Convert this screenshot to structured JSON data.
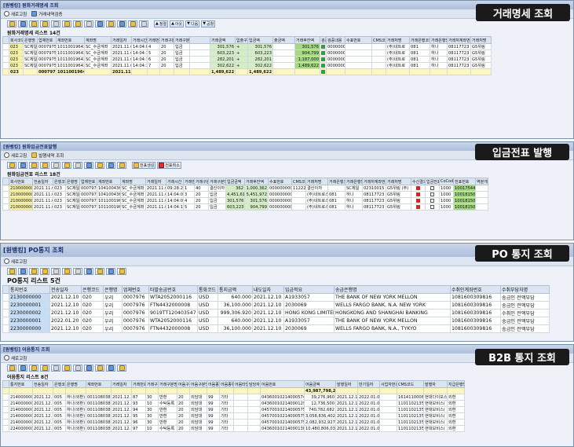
{
  "panel1": {
    "title": "[원뱅킹] 원화거래명세 조회",
    "tag": "거래명세 조회",
    "app_buttons": [
      "새로고침",
      "거래내역검증"
    ],
    "toolbar_buttons": [
      "정렬",
      "아웃",
      "다음",
      "공항"
    ],
    "list_title": "원화거래명세 리스트 14건",
    "headers": [
      "회사코드",
      "은행명",
      "업체번호",
      "계좌번호",
      "계좌명",
      "거래일자",
      "거래시간",
      "거래번호",
      "거래구분",
      "거래구분명",
      "",
      "거래금액",
      "입출구분",
      "입금액",
      "출금액",
      "거래후잔액",
      "검증",
      "검증내용",
      "수표번호",
      "CMS코드",
      "거래처명",
      "거래은행코드",
      "거래은행명",
      "거래처계좌번호",
      "거래처명"
    ],
    "rows": [
      [
        "023",
        "SC제일",
        "0007975",
        "10110019643",
        "SC_수금계좌",
        "2021.11.01",
        "14:04:06",
        "4",
        "20",
        "입금",
        "",
        "301,576",
        "+",
        "301,576",
        "",
        "301,576",
        "초기전액",
        "0000000000",
        "",
        "",
        "(주)네트로",
        "081",
        "하나",
        "08117723",
        "G5위링"
      ],
      [
        "023",
        "SC제일",
        "0007975",
        "10110019643",
        "SC_수금계좌",
        "2021.11.01",
        "14:04:10",
        "5",
        "20",
        "입금",
        "",
        "603,223",
        "+",
        "603,223",
        "",
        "904,799",
        "전액일치",
        "0000000000",
        "",
        "",
        "(주)네트로",
        "081",
        "하나",
        "08117723",
        "G5위링"
      ],
      [
        "023",
        "SC제일",
        "0007975",
        "10110019643",
        "SC_수금계좌",
        "2021.11.01",
        "14:04:13",
        "6",
        "20",
        "입금",
        "",
        "282,201",
        "+",
        "282,201",
        "",
        "1,187,000",
        "전액일치",
        "0000000000",
        "",
        "",
        "(주)네트로",
        "081",
        "하나",
        "08117723",
        "G5위링"
      ],
      [
        "023",
        "SC제일",
        "0007975",
        "10110019643",
        "SC_수금계좌",
        "2021.11.01",
        "14:04:16",
        "7",
        "20",
        "입금",
        "",
        "302,622",
        "+",
        "302,622",
        "",
        "1,489,622",
        "전액일치",
        "0000000000",
        "",
        "",
        "(주)네트로",
        "081",
        "하나",
        "08117723",
        "G5위링"
      ]
    ],
    "sum": [
      "023",
      "",
      "0007975",
      "10110019643",
      "",
      "2021.11.01",
      "",
      "",
      "",
      "",
      "",
      "1,489,622",
      "",
      "1,489,622",
      "",
      "",
      "",
      "",
      "",
      "",
      "",
      "",
      "",
      "",
      ""
    ]
  },
  "panel2": {
    "title": "[원뱅킹] 원화입금전표발행",
    "tag": "입금전표 발행",
    "app_buttons": [
      "새로고침",
      "발행내역 조회"
    ],
    "toolbar_buttons": [
      "전표생성",
      "전표취소"
    ],
    "list_title": "원화입금전표 리스트 18건",
    "headers": [
      "회사번호",
      "전송일자",
      "은행코드",
      "은행명",
      "업체번호",
      "계좌번호",
      "계좌명",
      "거래일자",
      "거래시간",
      "거래번호",
      "거래구분",
      "거래구분명",
      "입금금액",
      "거래후잔액",
      "수표번호",
      "CMS코드",
      "거래처명",
      "거래은행코드",
      "거래은행명",
      "거래처계좌번호",
      "거래처명",
      "수신결과",
      "입금전표",
      "CoCode",
      "전표번호",
      "역분개"
    ],
    "rows": [
      [
        "2100000002",
        "2021.11.01",
        "023",
        "SC제일",
        "0007975",
        "10410043660",
        "SC_수금계좌",
        "2021.11.01",
        "09:28:22",
        "1",
        "40",
        "결산이자",
        "362",
        "1,000,362",
        "0000000000",
        "11222",
        "결산이자",
        "",
        "SC제일",
        "02310015",
        "G5위링 (주)",
        "red",
        "",
        "1000",
        "100175449",
        ""
      ],
      [
        "2100000004",
        "2021.11.01",
        "023",
        "SC제일",
        "0007975",
        "10410043660",
        "SC_수금계좌",
        "2021.11.01",
        "14:04:00",
        "3",
        "20",
        "입금",
        "4,451,610",
        "5,451,972",
        "0000000000",
        "",
        "(주)네트로스",
        "081",
        "하나",
        "08117723",
        "G5위링",
        "red",
        "",
        "1000",
        "100181500",
        ""
      ],
      [
        "2100000005",
        "2021.11.01",
        "023",
        "SC제일",
        "0007975",
        "10110019643",
        "SC_수금계좌",
        "2021.11.01",
        "14:04:06",
        "4",
        "20",
        "입금",
        "301,576",
        "301,576",
        "0000000000",
        "",
        "(주)네트로스",
        "081",
        "하나",
        "08117723",
        "G5위링",
        "red",
        "",
        "1000",
        "100181505",
        ""
      ],
      [
        "2100000006",
        "2021.11.01",
        "023",
        "SC제일",
        "0007975",
        "10110019643",
        "SC_수금계좌",
        "2021.11.01",
        "14:04:10",
        "5",
        "20",
        "입금",
        "603,223",
        "904,799",
        "0000000000",
        "",
        "(주)네트로스",
        "081",
        "하나",
        "08117723",
        "G5위링",
        "red",
        "",
        "1000",
        "100181506",
        ""
      ]
    ]
  },
  "panel3": {
    "title": "[원뱅킹] PO통지 조회",
    "tag": "PO 통지 조회",
    "app_buttons": [
      "새로고침"
    ],
    "list_title": "PO통지 리스트 5건",
    "headers": [
      "통지번호",
      "전송일자",
      "은행코드",
      "은행명",
      "업체번호",
      "타발송금번호",
      "통화코드",
      "통지금액",
      "내도일자",
      "입금적요",
      "송금은행명",
      "수취인계좌번호",
      "수취부담자명"
    ],
    "rows": [
      [
        "2130000000",
        "2021.12.10",
        "020",
        "우리",
        "0007976",
        "WTA2052000116",
        "USD",
        "640.000",
        "2021.12.10",
        "A1933057",
        "THE BANK OF NEW YORK MELLON",
        "1081600309816",
        "송금인 전액부담"
      ],
      [
        "2230000001",
        "2021.12.10",
        "020",
        "우리",
        "0007976",
        "FTN4432000008",
        "USD",
        "36,100.000",
        "2021.12.10",
        "2030069",
        "WELLS FARGO BANK, N.A. NEW YORK",
        "1081600309816",
        "송금인 전액부담"
      ],
      [
        "2230000002",
        "2021.12.10",
        "020",
        "우리",
        "0007976",
        "9019TT120403547",
        "USD",
        "999,306.920",
        "2021.12.10",
        "HONG KONG LIMITED",
        "HONGKONG AND SHANGHAI BANKING",
        "1081600309816",
        "수취인 전액부담"
      ],
      [
        "2230000001",
        "2022.01.20",
        "020",
        "우리",
        "0007976",
        "WTA2052000116",
        "USD",
        "640.000",
        "2021.12.10",
        "A1933057",
        "THE BANK OF NEW YORK MELLON",
        "1081600309816",
        "송금인 전액부담"
      ],
      [
        "2230000000",
        "2021.12.10",
        "020",
        "우리",
        "0007976",
        "FTN4432000008",
        "USD",
        "36,100.000",
        "2021.12.10",
        "2030069",
        "WELLS FARGO BANK, N.A., TYKYO",
        "1081600309816",
        "송금인 전액부담"
      ]
    ]
  },
  "panel4": {
    "title": "[원뱅킹] 어음통지 조회",
    "tag": "B2B 통지 조회",
    "app_buttons": [
      "새로고침"
    ],
    "list_title": "어음통지 리스트 8건",
    "headers": [
      "통지번호",
      "전송일자",
      "은행코드",
      "은행명",
      "계좌번호",
      "거래일자",
      "거래번호",
      "거래구분",
      "거래구분명",
      "어음구분",
      "어음구분명",
      "어음종류",
      "어음종류명",
      "어음타입",
      "담당자",
      "어음번호",
      "어음금액",
      "발행일자",
      "만기일자",
      "사업자번호",
      "CMS코드",
      "발행자",
      "지급은행명"
    ],
    "sum": [
      "",
      "",
      "",
      "",
      "",
      "",
      "",
      "",
      "",
      "",
      "",
      "",
      "",
      "",
      "",
      "",
      "43,987,798,239",
      "",
      "",
      "",
      "",
      "",
      ""
    ],
    "rows": [
      [
        "2140000000",
        "2021.12.10",
        "005",
        "하나(외환)",
        "00110803802",
        "2021.12.10",
        "87",
        "30",
        "반환",
        "20",
        "외담대",
        "99",
        "기타",
        "",
        "",
        "04360010214000574401",
        "39,276,960",
        "2021.12.10",
        "2022.01.09",
        "",
        "1614110008562",
        "현대다이모스",
        "외환"
      ],
      [
        "2140000000",
        "2021.12.10",
        "005",
        "하나(외환)",
        "00110803802",
        "2021.12.10",
        "93",
        "10",
        "수탁등록",
        "20",
        "외담대",
        "99",
        "기타",
        "",
        "",
        "04360010214000129153",
        "12,736,500",
        "2021.12.10",
        "2022.01.09",
        "",
        "1101102135536",
        "현대모비스(",
        "외환"
      ],
      [
        "2140000000",
        "2021.12.10",
        "005",
        "하나(외환)",
        "00110803802",
        "2021.12.10",
        "94",
        "30",
        "반환",
        "20",
        "외담대",
        "99",
        "기타",
        "",
        "",
        "04570010214000575196",
        "740,782,682",
        "2021.12.10",
        "2022.01.09",
        "",
        "1101102135536",
        "현대모비스(",
        "외환"
      ],
      [
        "2140000000",
        "2021.12.10",
        "005",
        "하나(외환)",
        "00110803802",
        "2021.12.10",
        "95",
        "30",
        "반환",
        "20",
        "외담대",
        "99",
        "기타",
        "",
        "",
        "04570010214000575196",
        "3,058,836,402",
        "2021.12.10",
        "2022.01.09",
        "",
        "1101102135536",
        "현대모비스(",
        "외환"
      ],
      [
        "2140000000",
        "2021.12.10",
        "005",
        "하나(외환)",
        "00110803802",
        "2021.12.10",
        "96",
        "30",
        "반환",
        "20",
        "외담대",
        "99",
        "기타",
        "",
        "",
        "04570010214000575196",
        "2,082,932,927",
        "2021.12.10",
        "2022.01.09",
        "",
        "1101102135536",
        "현대모비스(",
        "외환"
      ],
      [
        "2240000000",
        "2021.12.10",
        "005",
        "하나(외환)",
        "00110803802",
        "2021.12.10",
        "97",
        "10",
        "수탁등록",
        "20",
        "외담대",
        "99",
        "기타",
        "",
        "",
        "04360010214000130004",
        "10,480,806,032",
        "2021.12.10",
        "2022.01.09",
        "",
        "1101102135536",
        "현대모비스(",
        "외환"
      ]
    ]
  }
}
